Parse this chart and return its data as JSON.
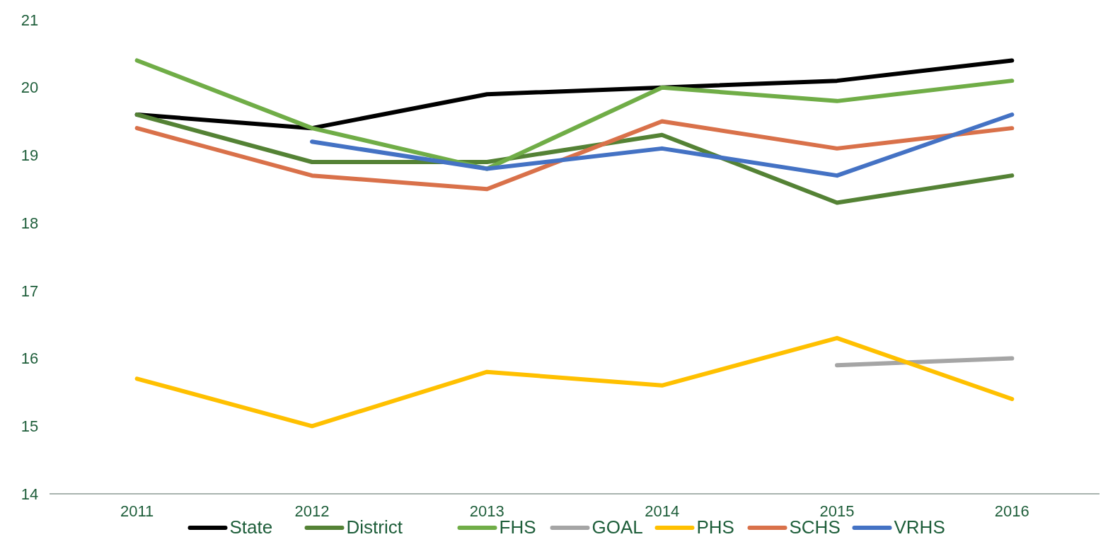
{
  "chart_data": {
    "type": "line",
    "categories": [
      "2011",
      "2012",
      "2013",
      "2014",
      "2015",
      "2016"
    ],
    "series": [
      {
        "name": "State",
        "color": "#000000",
        "values": [
          19.6,
          19.4,
          19.9,
          20.0,
          20.1,
          20.4
        ]
      },
      {
        "name": "District",
        "color": "#548235",
        "values": [
          19.6,
          18.9,
          18.9,
          19.3,
          18.3,
          18.7
        ]
      },
      {
        "name": "FHS",
        "color": "#70ad47",
        "values": [
          20.4,
          19.4,
          18.8,
          20.0,
          19.8,
          20.1
        ]
      },
      {
        "name": "GOAL",
        "color": "#a5a5a5",
        "values": [
          null,
          null,
          null,
          null,
          15.9,
          16.0
        ]
      },
      {
        "name": "PHS",
        "color": "#ffc000",
        "values": [
          15.7,
          15.0,
          15.8,
          15.6,
          16.3,
          15.4
        ]
      },
      {
        "name": "SCHS",
        "color": "#d9714a",
        "values": [
          19.4,
          18.7,
          18.5,
          19.5,
          19.1,
          19.4
        ]
      },
      {
        "name": "VRHS",
        "color": "#4472c4",
        "values": [
          null,
          19.2,
          18.8,
          19.1,
          18.7,
          19.6
        ]
      }
    ],
    "ylim": [
      14,
      21
    ],
    "yticks": [
      14,
      15,
      16,
      17,
      18,
      19,
      20,
      21
    ],
    "grid": false,
    "legend": "bottom",
    "marker": "none",
    "line_style": "solid"
  }
}
